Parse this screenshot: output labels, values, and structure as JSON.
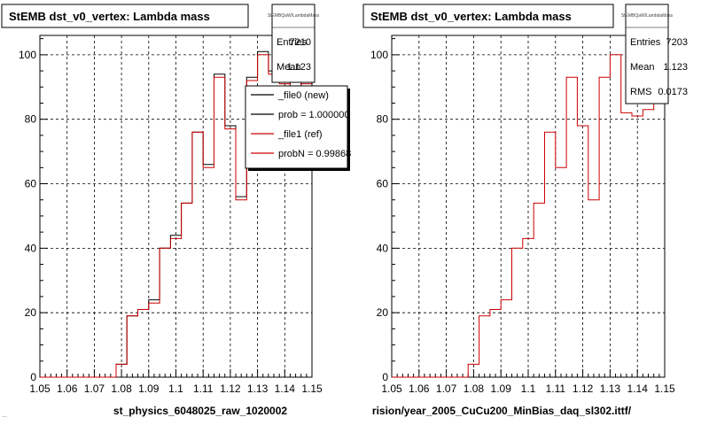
{
  "footer": {
    "note": "..."
  },
  "chart_data": [
    {
      "type": "step-histogram",
      "title": "StEMB dst_v0_vertex: Lambda mass",
      "xlabel": "st_physics_6048025_raw_1020002",
      "ylabel": "",
      "xlim": [
        1.05,
        1.15
      ],
      "ylim": [
        0,
        106
      ],
      "grid": true,
      "x_ticks": [
        "1.05",
        "1.06",
        "1.07",
        "1.08",
        "1.09",
        "1.1",
        "1.11",
        "1.12",
        "1.13",
        "1.14",
        "1.15"
      ],
      "y_ticks": [
        "0",
        "20",
        "40",
        "60",
        "80",
        "100"
      ],
      "bin_edges": [
        1.05,
        1.054,
        1.058,
        1.062,
        1.066,
        1.07,
        1.074,
        1.078,
        1.082,
        1.086,
        1.09,
        1.094,
        1.098,
        1.102,
        1.106,
        1.11,
        1.114,
        1.118,
        1.122,
        1.126,
        1.13,
        1.134,
        1.138,
        1.142,
        1.146,
        1.15
      ],
      "series": [
        {
          "name": "_file0 (new)",
          "color": "#000000",
          "values": [
            0,
            0,
            0,
            0,
            0,
            0,
            0,
            4,
            19,
            21,
            24,
            40,
            44,
            54,
            76,
            66,
            94,
            78,
            56,
            93,
            101,
            95,
            92,
            90,
            92
          ]
        },
        {
          "name": "_file1 (ref)",
          "color": "#cc0000",
          "values": [
            0,
            0,
            0,
            0,
            0,
            0,
            0,
            4,
            19,
            21,
            23,
            40,
            43,
            54,
            76,
            65,
            93,
            77,
            55,
            92,
            100,
            94,
            91,
            89,
            91
          ]
        }
      ],
      "stats": {
        "header": "StEMBQaW/LambdaMass",
        "rows": [
          {
            "label": "Entries",
            "value": "7210"
          },
          {
            "label": "Mean",
            "value": "1.123"
          }
        ]
      },
      "legend": {
        "placement": "top-right",
        "entries": [
          {
            "label": "_file0 (new)",
            "color": "#000000"
          },
          {
            "label": "prob = 1.000000",
            "color": "#000000"
          },
          {
            "label": "_file1 (ref)",
            "color": "#cc0000"
          },
          {
            "label": "probN = 0.99868",
            "color": "#cc0000"
          }
        ]
      }
    },
    {
      "type": "step-histogram",
      "title": "StEMB dst_v0_vertex: Lambda mass",
      "xlabel": "rision/year_2005_CuCu200_MinBias_daq_sl302.ittf/",
      "ylabel": "",
      "xlim": [
        1.05,
        1.15
      ],
      "ylim": [
        0,
        106
      ],
      "grid": true,
      "x_ticks": [
        "1.05",
        "1.06",
        "1.07",
        "1.08",
        "1.09",
        "1.1",
        "1.11",
        "1.12",
        "1.13",
        "1.14",
        "1.15"
      ],
      "y_ticks": [
        "0",
        "20",
        "40",
        "60",
        "80",
        "100"
      ],
      "bin_edges": [
        1.05,
        1.054,
        1.058,
        1.062,
        1.066,
        1.07,
        1.074,
        1.078,
        1.082,
        1.086,
        1.09,
        1.094,
        1.098,
        1.102,
        1.106,
        1.11,
        1.114,
        1.118,
        1.122,
        1.126,
        1.13,
        1.134,
        1.138,
        1.142,
        1.146,
        1.15
      ],
      "series": [
        {
          "name": "",
          "color": "#cc0000",
          "values": [
            0,
            0,
            0,
            0,
            0,
            0,
            0,
            4,
            19,
            21,
            24,
            40,
            43,
            54,
            76,
            65,
            93,
            78,
            55,
            93,
            100,
            82,
            81,
            83,
            88
          ]
        }
      ],
      "stats": {
        "header": "StEMBQaW/LambdaMass",
        "rows": [
          {
            "label": "Entries",
            "value": "7203"
          },
          {
            "label": "Mean",
            "value": "1.123"
          },
          {
            "label": "RMS",
            "value": "0.0173"
          }
        ]
      },
      "legend": null
    }
  ]
}
